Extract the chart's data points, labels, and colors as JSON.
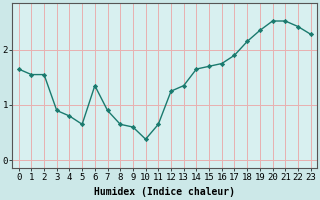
{
  "x": [
    0,
    1,
    2,
    3,
    4,
    5,
    6,
    7,
    8,
    9,
    10,
    11,
    12,
    13,
    14,
    15,
    16,
    17,
    18,
    19,
    20,
    21,
    22,
    23
  ],
  "y": [
    1.65,
    1.55,
    1.55,
    0.9,
    0.8,
    0.65,
    1.35,
    0.9,
    0.65,
    0.6,
    0.38,
    0.65,
    1.25,
    1.35,
    1.65,
    1.7,
    1.75,
    1.9,
    2.15,
    2.35,
    2.52,
    2.52,
    2.42,
    2.28
  ],
  "line_color": "#1a7a6e",
  "marker": "D",
  "marker_size": 2.2,
  "line_width": 1.0,
  "bg_color": "#cce8e8",
  "plot_bg_color": "#d8f0f0",
  "grid_color": "#e8b0b0",
  "xlabel": "Humidex (Indice chaleur)",
  "xlabel_fontsize": 7,
  "tick_fontsize": 6.5,
  "ylim": [
    -0.15,
    2.85
  ],
  "xlim": [
    -0.5,
    23.5
  ],
  "yticks": [
    0,
    1,
    2
  ],
  "xticks": [
    0,
    1,
    2,
    3,
    4,
    5,
    6,
    7,
    8,
    9,
    10,
    11,
    12,
    13,
    14,
    15,
    16,
    17,
    18,
    19,
    20,
    21,
    22,
    23
  ]
}
